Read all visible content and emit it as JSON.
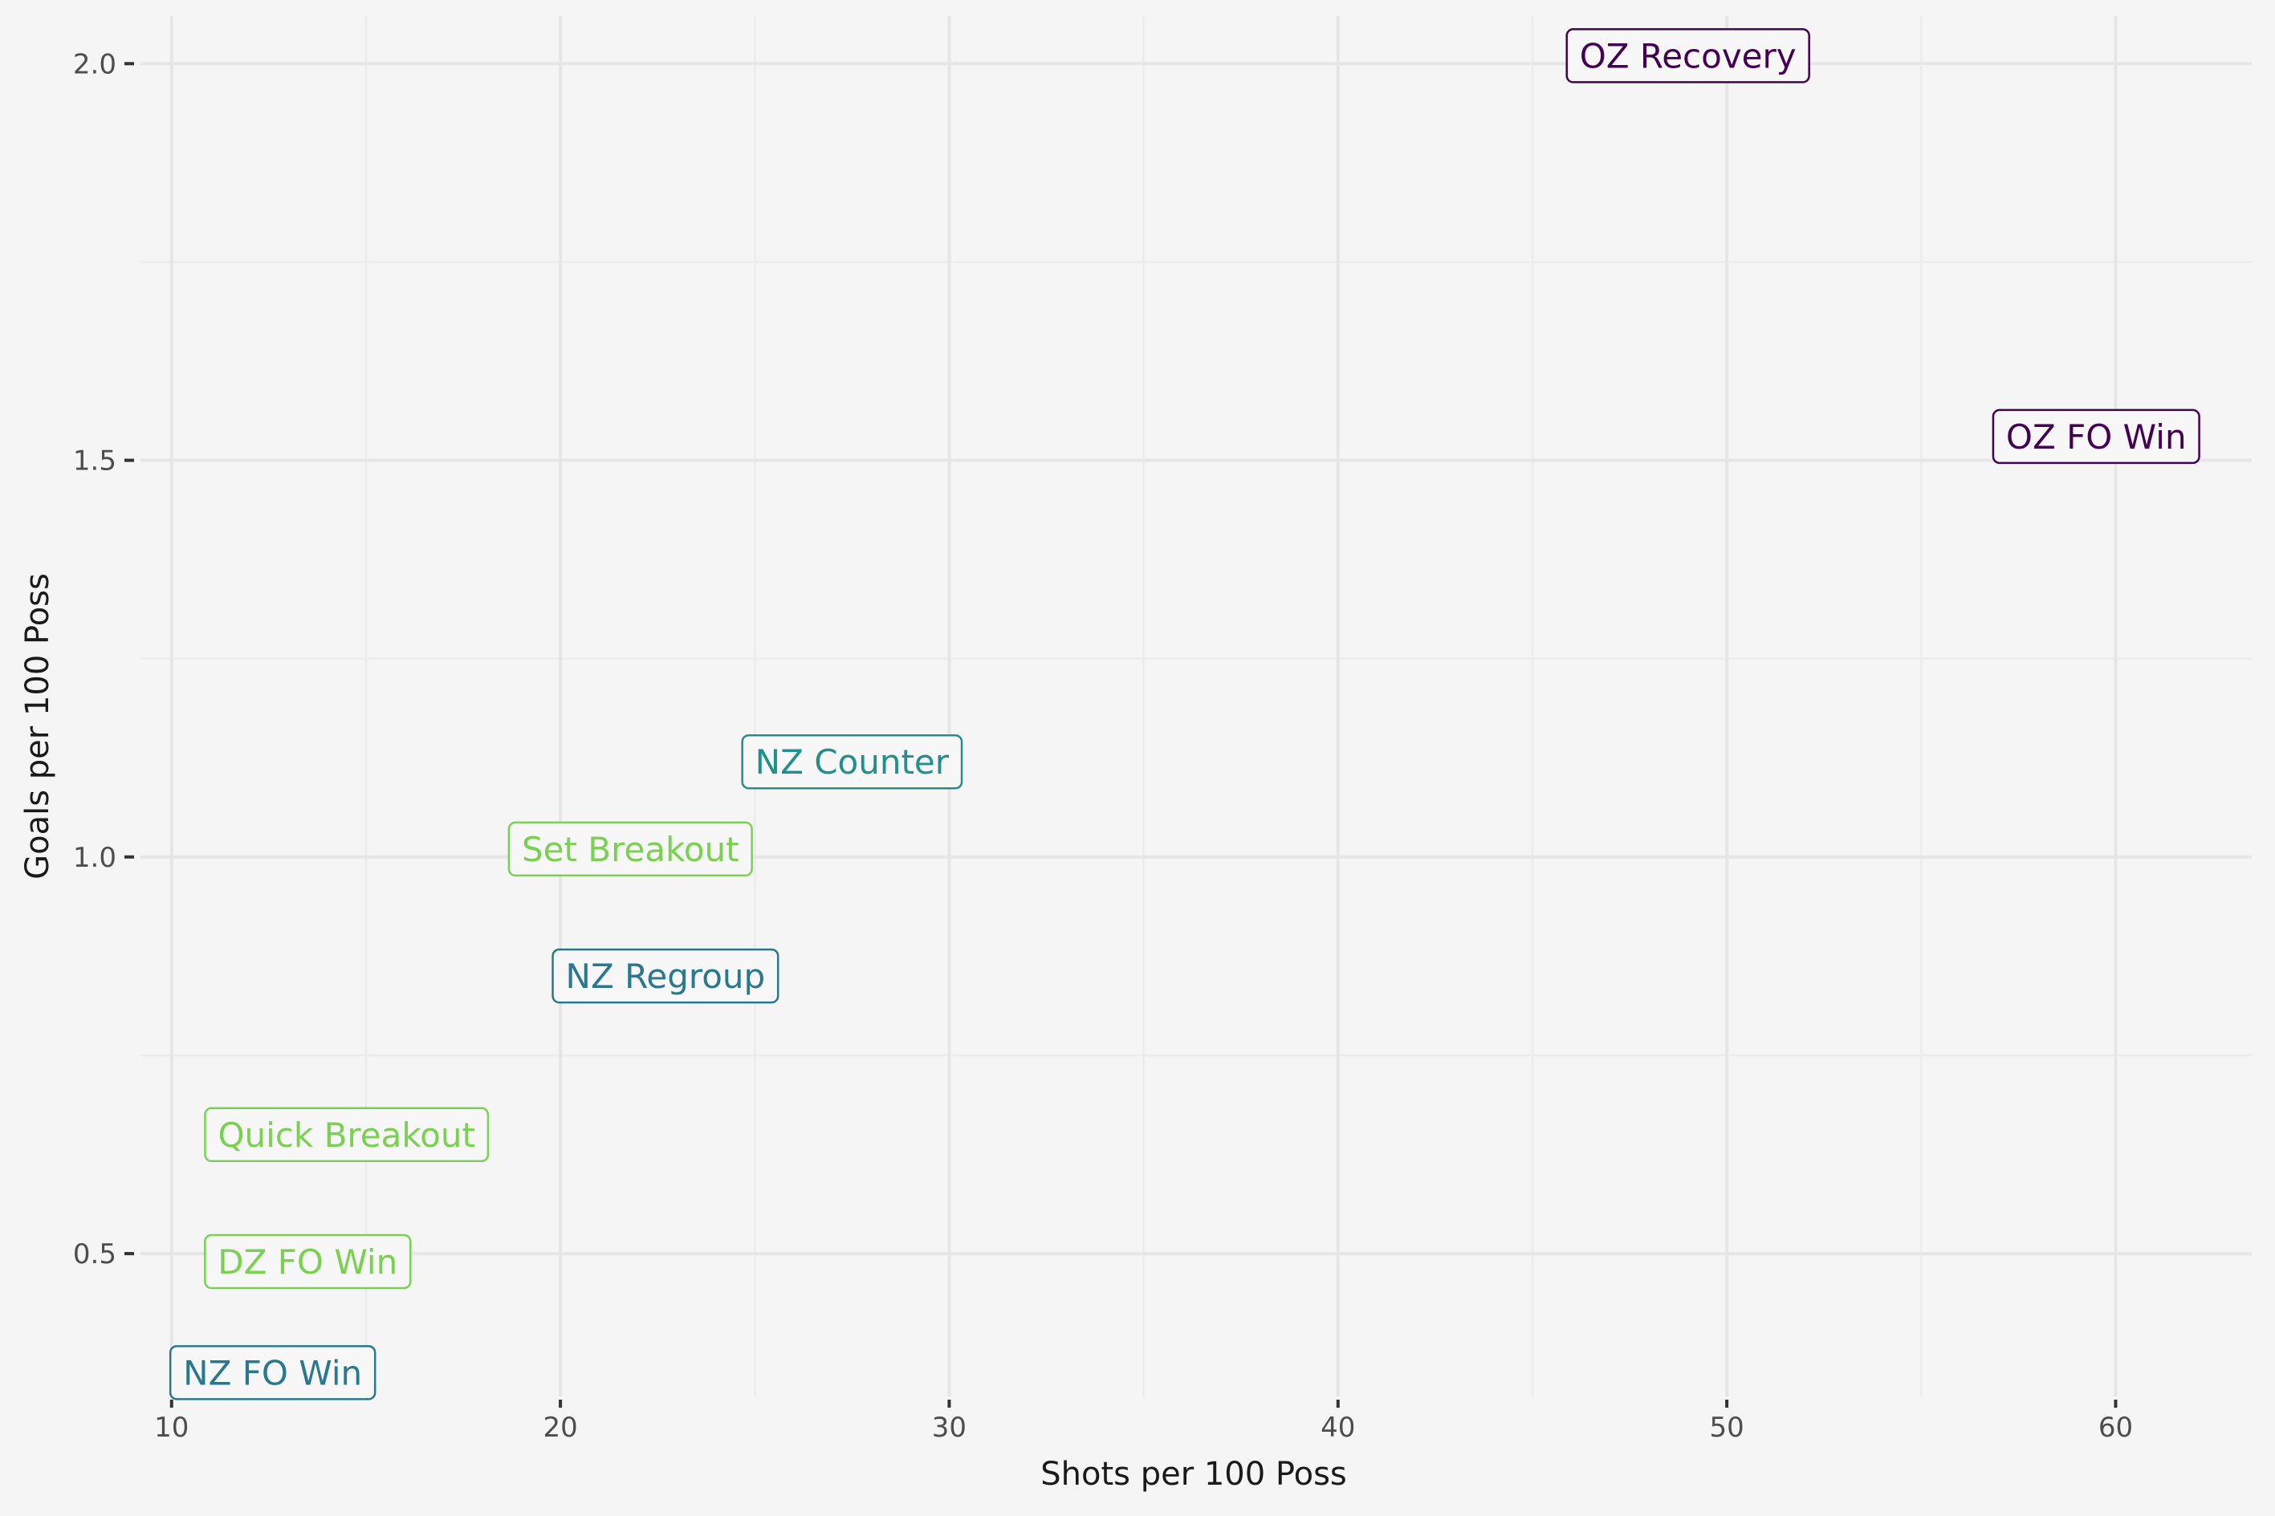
{
  "chart_data": {
    "type": "scatter",
    "xlabel": "Shots per 100 Poss",
    "ylabel": "Goals per 100 Poss",
    "xlim": [
      9.2,
      63.5
    ],
    "ylim": [
      0.32,
      2.06
    ],
    "x_ticks": [
      10,
      20,
      30,
      40,
      50,
      60
    ],
    "y_ticks": [
      0.5,
      1.0,
      1.5,
      2.0
    ],
    "x_tick_labels": [
      "10",
      "20",
      "30",
      "40",
      "50",
      "60"
    ],
    "y_tick_labels": [
      "0.5",
      "1.0",
      "1.5",
      "2.0"
    ],
    "grid": true,
    "legend": "none",
    "points": [
      {
        "label": "OZ Recovery",
        "x": 49.0,
        "y": 2.01,
        "color": "#440154"
      },
      {
        "label": "OZ FO Win",
        "x": 59.5,
        "y": 1.53,
        "color": "#440154"
      },
      {
        "label": "NZ Counter",
        "x": 27.5,
        "y": 1.12,
        "color": "#21908c"
      },
      {
        "label": "Set Breakout",
        "x": 21.8,
        "y": 1.01,
        "color": "#7ad151"
      },
      {
        "label": "NZ Regroup",
        "x": 22.7,
        "y": 0.85,
        "color": "#2a788e"
      },
      {
        "label": "Quick Breakout",
        "x": 14.5,
        "y": 0.65,
        "color": "#7ad151"
      },
      {
        "label": "DZ FO Win",
        "x": 13.5,
        "y": 0.49,
        "color": "#7ad151"
      },
      {
        "label": "NZ FO Win",
        "x": 12.6,
        "y": 0.35,
        "color": "#2a788e"
      }
    ]
  }
}
